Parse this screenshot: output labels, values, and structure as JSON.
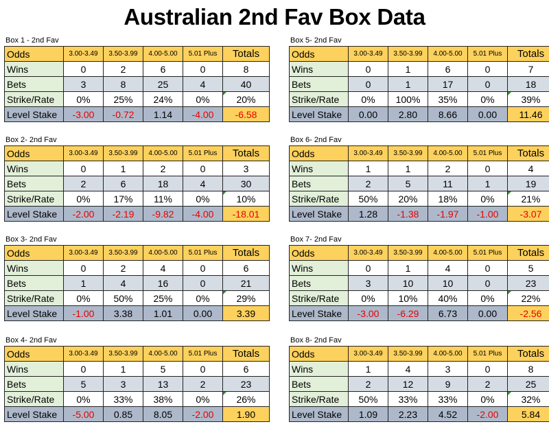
{
  "title": "Australian 2nd Fav Box Data",
  "colors": {
    "header": "#fcd15d",
    "label": "#e2efd9",
    "bets": "#d6dce4",
    "level": "#adb9ca",
    "negative": "#e60000"
  },
  "boxes": [
    {
      "label": "Box 1 - 2nd Fav",
      "header": [
        "Odds",
        "3.00-3.49",
        "3.50-3.99",
        "4.00-5.00",
        "5.01 Plus",
        "Totals"
      ],
      "rows": [
        {
          "label": "Wins",
          "values": [
            "0",
            "2",
            "6",
            "0",
            "8"
          ]
        },
        {
          "label": "Bets",
          "values": [
            "3",
            "8",
            "25",
            "4",
            "40"
          ]
        },
        {
          "label": "Strike/Rate",
          "values": [
            "0%",
            "25%",
            "24%",
            "0%",
            "20%"
          ]
        },
        {
          "label": "Level Stake",
          "values": [
            "-3.00",
            "-0.72",
            "1.14",
            "-4.00",
            "-6.58"
          ]
        }
      ]
    },
    {
      "label": "Box 2- 2nd Fav",
      "header": [
        "Odds",
        "3.00-3.49",
        "3.50-3.99",
        "4.00-5.00",
        "5.01 Plus",
        "Totals"
      ],
      "rows": [
        {
          "label": "Wins",
          "values": [
            "0",
            "1",
            "2",
            "0",
            "3"
          ]
        },
        {
          "label": "Bets",
          "values": [
            "2",
            "6",
            "18",
            "4",
            "30"
          ]
        },
        {
          "label": "Strike/Rate",
          "values": [
            "0%",
            "17%",
            "11%",
            "0%",
            "10%"
          ]
        },
        {
          "label": "Level Stake",
          "values": [
            "-2.00",
            "-2.19",
            "-9.82",
            "-4.00",
            "-18.01"
          ]
        }
      ]
    },
    {
      "label": "Box 3- 2nd Fav",
      "header": [
        "Odds",
        "3.00-3.49",
        "3.50-3.99",
        "4.00-5.00",
        "5.01 Plus",
        "Totals"
      ],
      "rows": [
        {
          "label": "Wins",
          "values": [
            "0",
            "2",
            "4",
            "0",
            "6"
          ]
        },
        {
          "label": "Bets",
          "values": [
            "1",
            "4",
            "16",
            "0",
            "21"
          ]
        },
        {
          "label": "Strike/Rate",
          "values": [
            "0%",
            "50%",
            "25%",
            "0%",
            "29%"
          ]
        },
        {
          "label": "Level Stake",
          "values": [
            "-1.00",
            "3.38",
            "1.01",
            "0.00",
            "3.39"
          ]
        }
      ]
    },
    {
      "label": "Box 4- 2nd Fav",
      "header": [
        "Odds",
        "3.00-3.49",
        "3.50-3.99",
        "4.00-5.00",
        "5.01 Plus",
        "Totals"
      ],
      "rows": [
        {
          "label": "Wins",
          "values": [
            "0",
            "1",
            "5",
            "0",
            "6"
          ]
        },
        {
          "label": "Bets",
          "values": [
            "5",
            "3",
            "13",
            "2",
            "23"
          ]
        },
        {
          "label": "Strike/Rate",
          "values": [
            "0%",
            "33%",
            "38%",
            "0%",
            "26%"
          ]
        },
        {
          "label": "Level Stake",
          "values": [
            "-5.00",
            "0.85",
            "8.05",
            "-2.00",
            "1.90"
          ]
        }
      ]
    },
    {
      "label": "Box 5- 2nd Fav",
      "header": [
        "Odds",
        "3.00-3.49",
        "3.50-3.99",
        "4.00-5.00",
        "5.01 Plus",
        "Totals"
      ],
      "rows": [
        {
          "label": "Wins",
          "values": [
            "0",
            "1",
            "6",
            "0",
            "7"
          ]
        },
        {
          "label": "Bets",
          "values": [
            "0",
            "1",
            "17",
            "0",
            "18"
          ]
        },
        {
          "label": "Strike/Rate",
          "values": [
            "0%",
            "100%",
            "35%",
            "0%",
            "39%"
          ]
        },
        {
          "label": "Level Stake",
          "values": [
            "0.00",
            "2.80",
            "8.66",
            "0.00",
            "11.46"
          ]
        }
      ]
    },
    {
      "label": "Box 6- 2nd Fav",
      "header": [
        "Odds",
        "3.00-3.49",
        "3.50-3.99",
        "4.00-5.00",
        "5.01 Plus",
        "Totals"
      ],
      "rows": [
        {
          "label": "Wins",
          "values": [
            "1",
            "1",
            "2",
            "0",
            "4"
          ]
        },
        {
          "label": "Bets",
          "values": [
            "2",
            "5",
            "11",
            "1",
            "19"
          ]
        },
        {
          "label": "Strike/Rate",
          "values": [
            "50%",
            "20%",
            "18%",
            "0%",
            "21%"
          ]
        },
        {
          "label": "Level Stake",
          "values": [
            "1.28",
            "-1.38",
            "-1.97",
            "-1.00",
            "-3.07"
          ]
        }
      ]
    },
    {
      "label": "Box 7- 2nd Fav",
      "header": [
        "Odds",
        "3.00-3.49",
        "3.50-3.99",
        "4.00-5.00",
        "5.01 Plus",
        "Totals"
      ],
      "rows": [
        {
          "label": "Wins",
          "values": [
            "0",
            "1",
            "4",
            "0",
            "5"
          ]
        },
        {
          "label": "Bets",
          "values": [
            "3",
            "10",
            "10",
            "0",
            "23"
          ]
        },
        {
          "label": "Strike/Rate",
          "values": [
            "0%",
            "10%",
            "40%",
            "0%",
            "22%"
          ]
        },
        {
          "label": "Level Stake",
          "values": [
            "-3.00",
            "-6.29",
            "6.73",
            "0.00",
            "-2.56"
          ]
        }
      ]
    },
    {
      "label": "Box 8- 2nd Fav",
      "header": [
        "Odds",
        "3.00-3.49",
        "3.50-3.99",
        "4.00-5.00",
        "5.01 Plus",
        "Totals"
      ],
      "rows": [
        {
          "label": "Wins",
          "values": [
            "1",
            "4",
            "3",
            "0",
            "8"
          ]
        },
        {
          "label": "Bets",
          "values": [
            "2",
            "12",
            "9",
            "2",
            "25"
          ]
        },
        {
          "label": "Strike/Rate",
          "values": [
            "50%",
            "33%",
            "33%",
            "0%",
            "32%"
          ]
        },
        {
          "label": "Level Stake",
          "values": [
            "1.09",
            "2.23",
            "4.52",
            "-2.00",
            "5.84"
          ]
        }
      ]
    }
  ]
}
